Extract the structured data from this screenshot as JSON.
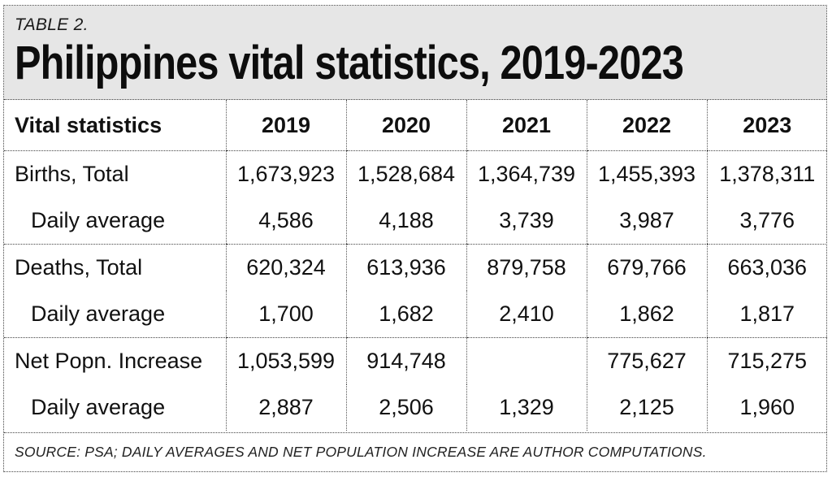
{
  "header": {
    "table_label": "TABLE 2.",
    "title": "Philippines vital statistics, 2019-2023"
  },
  "chart_data": {
    "type": "table",
    "title": "Philippines vital statistics, 2019-2023",
    "columns": [
      "Vital statistics",
      "2019",
      "2020",
      "2021",
      "2022",
      "2023"
    ],
    "rows": [
      {
        "label": "Births, Total",
        "values": [
          "1,673,923",
          "1,528,684",
          "1,364,739",
          "1,455,393",
          "1,378,311"
        ]
      },
      {
        "label": "Daily average",
        "values": [
          "4,586",
          "4,188",
          "3,739",
          "3,987",
          "3,776"
        ]
      },
      {
        "label": "Deaths, Total",
        "values": [
          "620,324",
          "613,936",
          "879,758",
          "679,766",
          "663,036"
        ]
      },
      {
        "label": "Daily average",
        "values": [
          "1,700",
          "1,682",
          "2,410",
          "1,862",
          "1,817"
        ]
      },
      {
        "label": "Net Popn. Increase",
        "values": [
          "1,053,599",
          "914,748",
          "",
          "775,627",
          "715,275"
        ]
      },
      {
        "label": "Daily average",
        "values": [
          "2,887",
          "2,506",
          "1,329",
          "2,125",
          "1,960"
        ]
      }
    ]
  },
  "footer": {
    "source": "SOURCE: PSA; DAILY AVERAGES AND NET POPULATION INCREASE ARE AUTHOR COMPUTATIONS."
  }
}
